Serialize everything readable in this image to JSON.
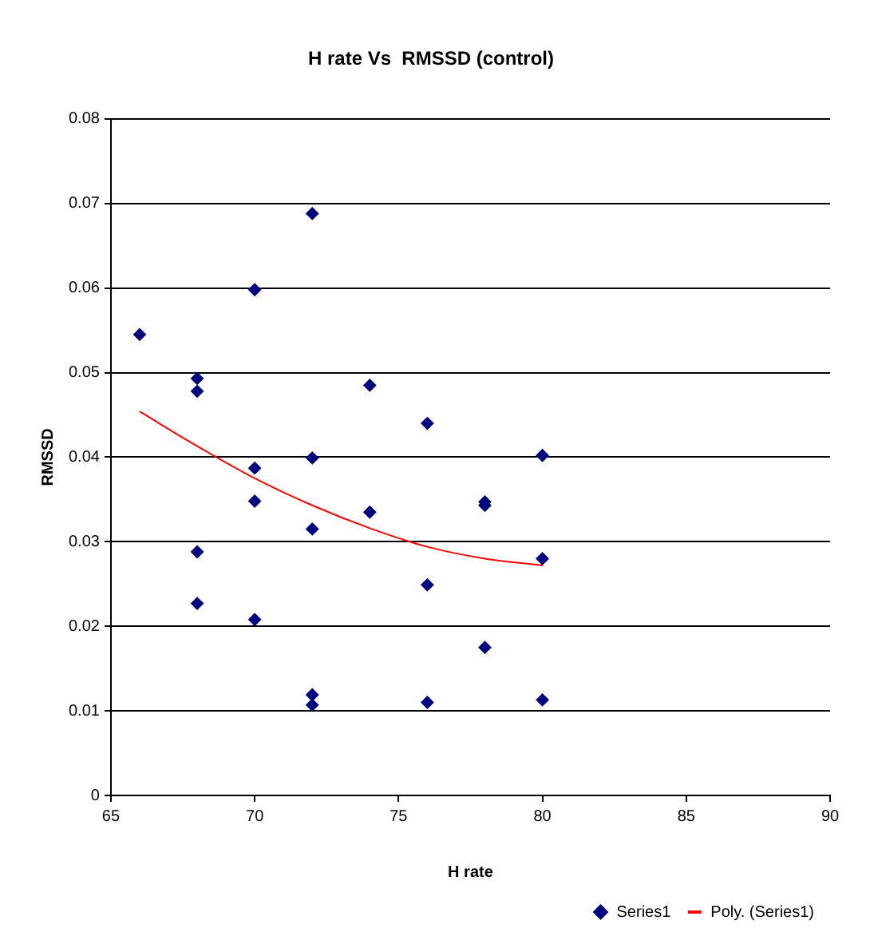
{
  "chart_data": {
    "type": "scatter",
    "title": "H rate Vs  RMSSD (control)",
    "xlabel": "H rate",
    "ylabel": "RMSSD",
    "xlim": [
      65,
      90
    ],
    "xticks": [
      65,
      70,
      75,
      80,
      85,
      90
    ],
    "ylim": [
      0,
      0.08
    ],
    "yticks": [
      0,
      0.01,
      0.02,
      0.03,
      0.04,
      0.05,
      0.06,
      0.07,
      0.08
    ],
    "grid": "y",
    "legend": "bottom right",
    "marker": "diamond",
    "series": [
      {
        "name": "Series1",
        "color": "#000080",
        "x": [
          66,
          68,
          68,
          68,
          68,
          70,
          70,
          70,
          70,
          72,
          72,
          72,
          72,
          72,
          74,
          74,
          76,
          76,
          76,
          78,
          78,
          78,
          80,
          80,
          80
        ],
        "values": [
          0.0545,
          0.0493,
          0.0478,
          0.0288,
          0.0227,
          0.0598,
          0.0387,
          0.0348,
          0.0208,
          0.0688,
          0.0399,
          0.0315,
          0.0119,
          0.0107,
          0.0485,
          0.0335,
          0.044,
          0.0249,
          0.011,
          0.0347,
          0.0343,
          0.0175,
          0.0402,
          0.028,
          0.0113
        ]
      },
      {
        "name": "Poly. (Series1)",
        "type": "line",
        "color": "#ff0000",
        "marker": "none",
        "x": [
          66,
          68,
          70,
          72,
          74,
          76,
          78,
          80
        ],
        "values": [
          0.0454,
          0.0413,
          0.0375,
          0.0343,
          0.0316,
          0.0294,
          0.028,
          0.0272
        ]
      }
    ]
  }
}
